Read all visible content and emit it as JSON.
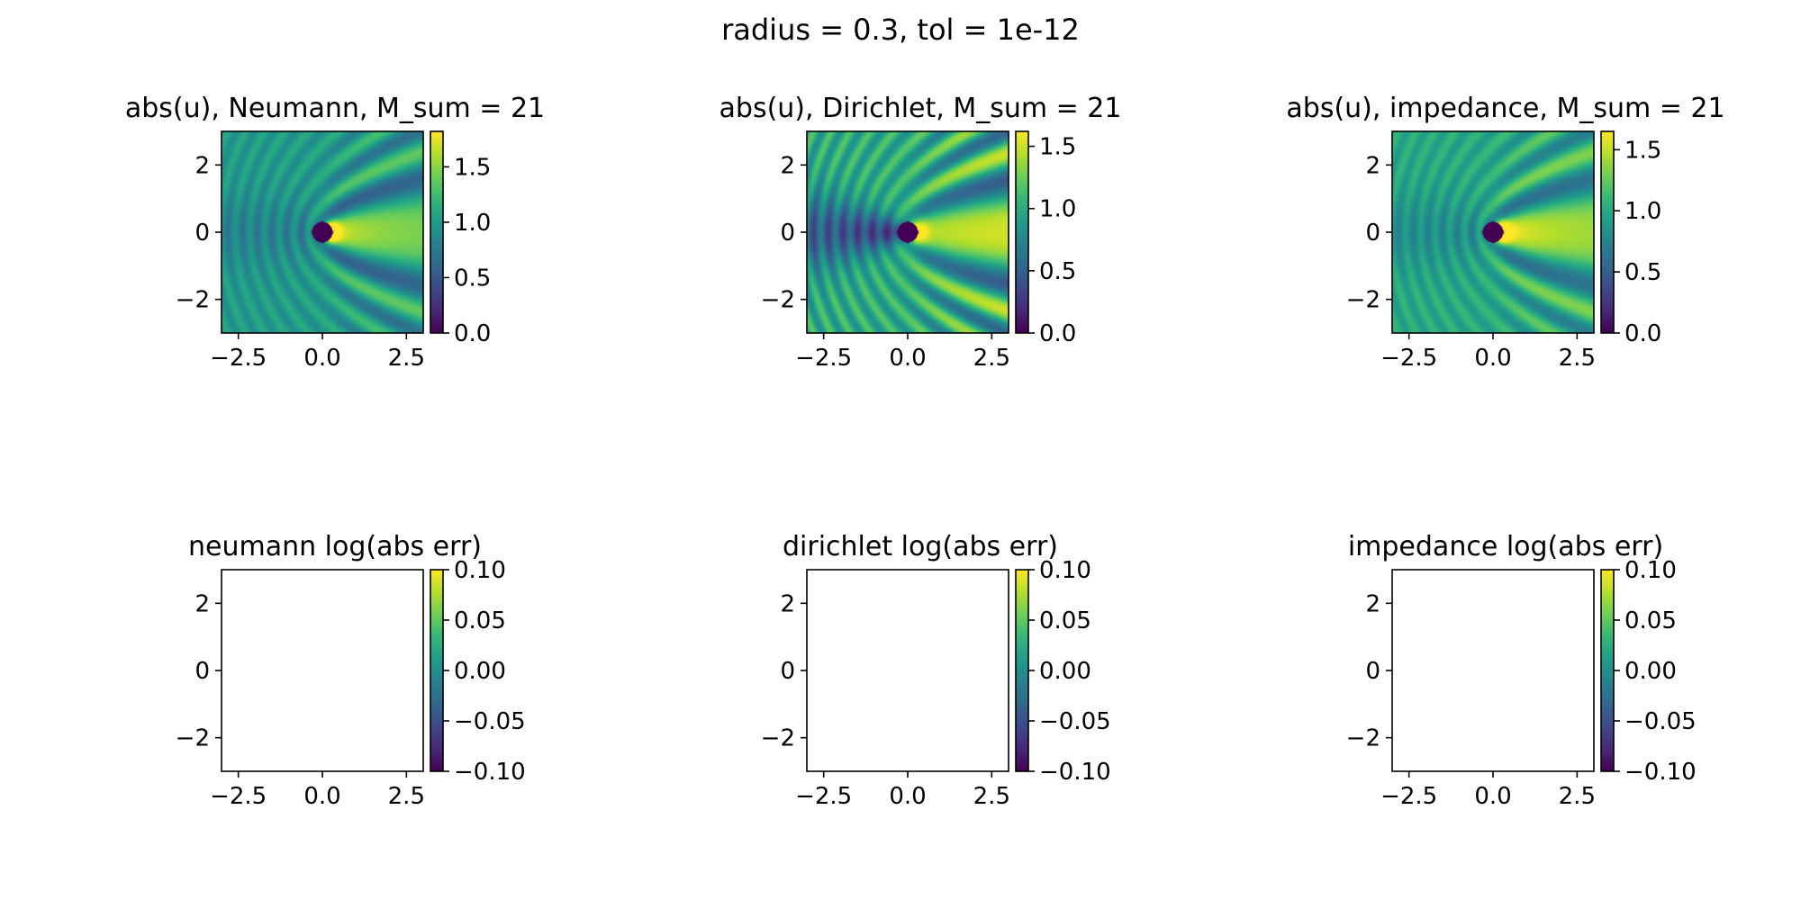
{
  "figure": {
    "suptitle": "radius = 0.3, tol = 1e-12"
  },
  "colormap": {
    "name": "viridis",
    "stops": [
      "#440154",
      "#482878",
      "#3e4989",
      "#31688e",
      "#26828e",
      "#1f9e89",
      "#35b779",
      "#6ece58",
      "#b5de2b",
      "#fde725"
    ]
  },
  "chart_data": [
    {
      "type": "heatmap",
      "title": "abs(u), Neumann, M_sum = 21",
      "field": "neumann",
      "xlim": [
        -3,
        3
      ],
      "ylim": [
        -3,
        3
      ],
      "xticks": [
        -2.5,
        0.0,
        2.5
      ],
      "xtick_labels": [
        "−2.5",
        "0.0",
        "2.5"
      ],
      "yticks": [
        -2,
        0,
        2
      ],
      "ytick_labels": [
        "−2",
        "0",
        "2"
      ],
      "colorbar": {
        "min": 0.0,
        "max": 1.82,
        "ticks": [
          0.0,
          0.5,
          1.0,
          1.5
        ],
        "tick_labels": [
          "0.0",
          "0.5",
          "1.0",
          "1.5"
        ]
      },
      "scatterer": {
        "center": [
          0,
          0
        ],
        "radius": 0.3
      }
    },
    {
      "type": "heatmap",
      "title": "abs(u), Dirichlet, M_sum = 21",
      "field": "dirichlet",
      "xlim": [
        -3,
        3
      ],
      "ylim": [
        -3,
        3
      ],
      "xticks": [
        -2.5,
        0.0,
        2.5
      ],
      "xtick_labels": [
        "−2.5",
        "0.0",
        "2.5"
      ],
      "yticks": [
        -2,
        0,
        2
      ],
      "ytick_labels": [
        "−2",
        "0",
        "2"
      ],
      "colorbar": {
        "min": 0.0,
        "max": 1.62,
        "ticks": [
          0.0,
          0.5,
          1.0,
          1.5
        ],
        "tick_labels": [
          "0.0",
          "0.5",
          "1.0",
          "1.5"
        ]
      },
      "scatterer": {
        "center": [
          0,
          0
        ],
        "radius": 0.3
      }
    },
    {
      "type": "heatmap",
      "title": "abs(u), impedance, M_sum = 21",
      "field": "impedance",
      "xlim": [
        -3,
        3
      ],
      "ylim": [
        -3,
        3
      ],
      "xticks": [
        -2.5,
        0.0,
        2.5
      ],
      "xtick_labels": [
        "−2.5",
        "0.0",
        "2.5"
      ],
      "yticks": [
        -2,
        0,
        2
      ],
      "ytick_labels": [
        "−2",
        "0",
        "2"
      ],
      "colorbar": {
        "min": 0.0,
        "max": 1.65,
        "ticks": [
          0.0,
          0.5,
          1.0,
          1.5
        ],
        "tick_labels": [
          "0.0",
          "0.5",
          "1.0",
          "1.5"
        ]
      },
      "scatterer": {
        "center": [
          0,
          0
        ],
        "radius": 0.3
      }
    },
    {
      "type": "heatmap",
      "title": "neumann log(abs err)",
      "field": "empty",
      "xlim": [
        -3,
        3
      ],
      "ylim": [
        -3,
        3
      ],
      "xticks": [
        -2.5,
        0.0,
        2.5
      ],
      "xtick_labels": [
        "−2.5",
        "0.0",
        "2.5"
      ],
      "yticks": [
        -2,
        0,
        2
      ],
      "ytick_labels": [
        "−2",
        "0",
        "2"
      ],
      "colorbar": {
        "min": -0.1,
        "max": 0.1,
        "ticks": [
          -0.1,
          -0.05,
          0.0,
          0.05,
          0.1
        ],
        "tick_labels": [
          "−0.10",
          "−0.05",
          "0.00",
          "0.05",
          "0.10"
        ]
      }
    },
    {
      "type": "heatmap",
      "title": "dirichlet log(abs err)",
      "field": "empty",
      "xlim": [
        -3,
        3
      ],
      "ylim": [
        -3,
        3
      ],
      "xticks": [
        -2.5,
        0.0,
        2.5
      ],
      "xtick_labels": [
        "−2.5",
        "0.0",
        "2.5"
      ],
      "yticks": [
        -2,
        0,
        2
      ],
      "ytick_labels": [
        "−2",
        "0",
        "2"
      ],
      "colorbar": {
        "min": -0.1,
        "max": 0.1,
        "ticks": [
          -0.1,
          -0.05,
          0.0,
          0.05,
          0.1
        ],
        "tick_labels": [
          "−0.10",
          "−0.05",
          "0.00",
          "0.05",
          "0.10"
        ]
      }
    },
    {
      "type": "heatmap",
      "title": "impedance log(abs err)",
      "field": "empty",
      "xlim": [
        -3,
        3
      ],
      "ylim": [
        -3,
        3
      ],
      "xticks": [
        -2.5,
        0.0,
        2.5
      ],
      "xtick_labels": [
        "−2.5",
        "0.0",
        "2.5"
      ],
      "yticks": [
        -2,
        0,
        2
      ],
      "ytick_labels": [
        "−2",
        "0",
        "2"
      ],
      "colorbar": {
        "min": -0.1,
        "max": 0.1,
        "ticks": [
          -0.1,
          -0.05,
          0.0,
          0.05,
          0.1
        ],
        "tick_labels": [
          "−0.10",
          "−0.05",
          "0.00",
          "0.05",
          "0.10"
        ]
      }
    }
  ]
}
